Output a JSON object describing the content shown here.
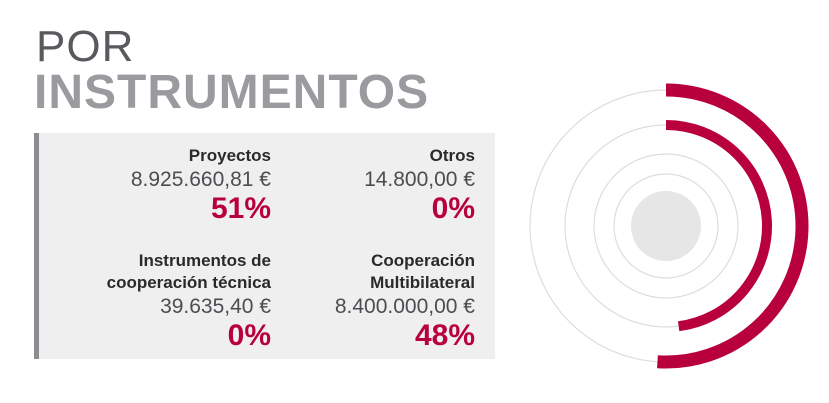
{
  "header": {
    "line1": "POR",
    "line2": "INSTRUMENTOS"
  },
  "colors": {
    "accent": "#b8003d",
    "ring": "#dddddf",
    "center": "#e6e6e7",
    "panel": "#efeff0"
  },
  "chart_data": {
    "type": "radial-bar",
    "series": [
      {
        "name": "Proyectos",
        "amount": "8.925.660,81 €",
        "percent_label": "51%",
        "value": 0.51
      },
      {
        "name": "Otros",
        "amount": "14.800,00 €",
        "percent_label": "0%",
        "value": 0.0
      },
      {
        "name": "Instrumentos de\ncooperación técnica",
        "amount": "39.635,40 €",
        "percent_label": "0%",
        "value": 0.0
      },
      {
        "name": "Cooperación\nMultibilateral",
        "amount": "8.400.000,00 €",
        "percent_label": "48%",
        "value": 0.48
      }
    ]
  }
}
